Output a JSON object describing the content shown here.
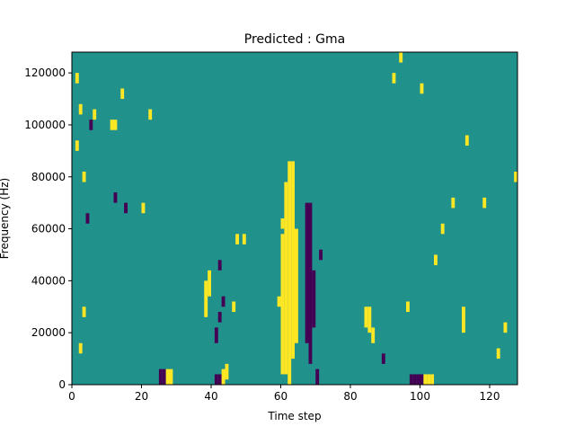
{
  "chart_data": {
    "type": "heatmap",
    "title": "Predicted : Gma",
    "xlabel": "Time step",
    "ylabel": "Frequency (Hz)",
    "xlim": [
      0,
      128
    ],
    "ylim": [
      0,
      128000
    ],
    "x_ticks": [
      0,
      20,
      40,
      60,
      80,
      100,
      120
    ],
    "y_ticks": [
      0,
      20000,
      40000,
      60000,
      80000,
      100000,
      120000
    ],
    "x_tick_labels": [
      "0",
      "20",
      "40",
      "60",
      "80",
      "100",
      "120"
    ],
    "y_tick_labels": [
      "0",
      "20000",
      "40000",
      "60000",
      "80000",
      "100000",
      "120000"
    ],
    "colormap": "viridis",
    "levels": [
      "low",
      "mid",
      "high"
    ],
    "level_colors": {
      "low": "#440154",
      "mid": "#21918c",
      "high": "#fde725"
    },
    "background_level": "mid",
    "grid": false,
    "cells": [
      {
        "t": 1,
        "f_from": 90000,
        "f_to": 94000,
        "level": "high"
      },
      {
        "t": 1,
        "f_from": 116000,
        "f_to": 120000,
        "level": "high"
      },
      {
        "t": 2,
        "f_from": 104000,
        "f_to": 108000,
        "level": "high"
      },
      {
        "t": 3,
        "f_from": 78000,
        "f_to": 82000,
        "level": "high"
      },
      {
        "t": 3,
        "f_from": 26000,
        "f_to": 30000,
        "level": "high"
      },
      {
        "t": 2,
        "f_from": 12000,
        "f_to": 16000,
        "level": "high"
      },
      {
        "t": 5,
        "f_from": 98000,
        "f_to": 102000,
        "level": "low"
      },
      {
        "t": 6,
        "f_from": 102000,
        "f_to": 106000,
        "level": "high"
      },
      {
        "t": 4,
        "f_from": 62000,
        "f_to": 66000,
        "level": "low"
      },
      {
        "t": 11,
        "f_from": 98000,
        "f_to": 102000,
        "level": "high"
      },
      {
        "t": 12,
        "f_from": 98000,
        "f_to": 102000,
        "level": "high"
      },
      {
        "t": 14,
        "f_from": 110000,
        "f_to": 114000,
        "level": "high"
      },
      {
        "t": 12,
        "f_from": 70000,
        "f_to": 74000,
        "level": "low"
      },
      {
        "t": 15,
        "f_from": 66000,
        "f_to": 70000,
        "level": "low"
      },
      {
        "t": 20,
        "f_from": 66000,
        "f_to": 70000,
        "level": "high"
      },
      {
        "t": 22,
        "f_from": 102000,
        "f_to": 106000,
        "level": "high"
      },
      {
        "t": 25,
        "f_from": 0,
        "f_to": 6000,
        "level": "low"
      },
      {
        "t": 26,
        "f_from": 0,
        "f_to": 6000,
        "level": "low"
      },
      {
        "t": 27,
        "f_from": 0,
        "f_to": 6000,
        "level": "high"
      },
      {
        "t": 28,
        "f_from": 0,
        "f_to": 6000,
        "level": "high"
      },
      {
        "t": 38,
        "f_from": 26000,
        "f_to": 40000,
        "level": "high"
      },
      {
        "t": 39,
        "f_from": 34000,
        "f_to": 44000,
        "level": "high"
      },
      {
        "t": 41,
        "f_from": 0,
        "f_to": 4000,
        "level": "low"
      },
      {
        "t": 42,
        "f_from": 0,
        "f_to": 4000,
        "level": "low"
      },
      {
        "t": 43,
        "f_from": 0,
        "f_to": 6000,
        "level": "high"
      },
      {
        "t": 44,
        "f_from": 2000,
        "f_to": 8000,
        "level": "high"
      },
      {
        "t": 42,
        "f_from": 24000,
        "f_to": 28000,
        "level": "low"
      },
      {
        "t": 41,
        "f_from": 16000,
        "f_to": 22000,
        "level": "low"
      },
      {
        "t": 43,
        "f_from": 30000,
        "f_to": 34000,
        "level": "low"
      },
      {
        "t": 46,
        "f_from": 28000,
        "f_to": 32000,
        "level": "high"
      },
      {
        "t": 47,
        "f_from": 54000,
        "f_to": 58000,
        "level": "high"
      },
      {
        "t": 49,
        "f_from": 54000,
        "f_to": 58000,
        "level": "high"
      },
      {
        "t": 42,
        "f_from": 44000,
        "f_to": 48000,
        "level": "low"
      },
      {
        "t": 60,
        "f_from": 4000,
        "f_to": 58000,
        "level": "high"
      },
      {
        "t": 61,
        "f_from": 4000,
        "f_to": 78000,
        "level": "high"
      },
      {
        "t": 62,
        "f_from": 0,
        "f_to": 86000,
        "level": "high"
      },
      {
        "t": 63,
        "f_from": 10000,
        "f_to": 86000,
        "level": "high"
      },
      {
        "t": 64,
        "f_from": 16000,
        "f_to": 60000,
        "level": "high"
      },
      {
        "t": 59,
        "f_from": 30000,
        "f_to": 34000,
        "level": "high"
      },
      {
        "t": 60,
        "f_from": 60000,
        "f_to": 64000,
        "level": "high"
      },
      {
        "t": 67,
        "f_from": 16000,
        "f_to": 70000,
        "level": "low"
      },
      {
        "t": 68,
        "f_from": 8000,
        "f_to": 70000,
        "level": "low"
      },
      {
        "t": 69,
        "f_from": 22000,
        "f_to": 44000,
        "level": "low"
      },
      {
        "t": 70,
        "f_from": 0,
        "f_to": 6000,
        "level": "low"
      },
      {
        "t": 71,
        "f_from": 48000,
        "f_to": 52000,
        "level": "low"
      },
      {
        "t": 84,
        "f_from": 22000,
        "f_to": 30000,
        "level": "high"
      },
      {
        "t": 85,
        "f_from": 20000,
        "f_to": 30000,
        "level": "high"
      },
      {
        "t": 86,
        "f_from": 16000,
        "f_to": 22000,
        "level": "high"
      },
      {
        "t": 89,
        "f_from": 8000,
        "f_to": 12000,
        "level": "low"
      },
      {
        "t": 97,
        "f_from": 0,
        "f_to": 4000,
        "level": "low"
      },
      {
        "t": 98,
        "f_from": 0,
        "f_to": 4000,
        "level": "low"
      },
      {
        "t": 99,
        "f_from": 0,
        "f_to": 4000,
        "level": "low"
      },
      {
        "t": 100,
        "f_from": 0,
        "f_to": 4000,
        "level": "low"
      },
      {
        "t": 101,
        "f_from": 0,
        "f_to": 4000,
        "level": "high"
      },
      {
        "t": 102,
        "f_from": 0,
        "f_to": 4000,
        "level": "high"
      },
      {
        "t": 103,
        "f_from": 0,
        "f_to": 4000,
        "level": "high"
      },
      {
        "t": 104,
        "f_from": 46000,
        "f_to": 50000,
        "level": "high"
      },
      {
        "t": 106,
        "f_from": 58000,
        "f_to": 62000,
        "level": "high"
      },
      {
        "t": 109,
        "f_from": 68000,
        "f_to": 72000,
        "level": "high"
      },
      {
        "t": 112,
        "f_from": 20000,
        "f_to": 30000,
        "level": "high"
      },
      {
        "t": 118,
        "f_from": 68000,
        "f_to": 72000,
        "level": "high"
      },
      {
        "t": 122,
        "f_from": 10000,
        "f_to": 14000,
        "level": "high"
      },
      {
        "t": 127,
        "f_from": 78000,
        "f_to": 82000,
        "level": "high"
      },
      {
        "t": 124,
        "f_from": 20000,
        "f_to": 24000,
        "level": "high"
      },
      {
        "t": 96,
        "f_from": 28000,
        "f_to": 32000,
        "level": "high"
      },
      {
        "t": 94,
        "f_from": 124000,
        "f_to": 128000,
        "level": "high"
      },
      {
        "t": 92,
        "f_from": 116000,
        "f_to": 120000,
        "level": "high"
      },
      {
        "t": 100,
        "f_from": 112000,
        "f_to": 116000,
        "level": "high"
      },
      {
        "t": 113,
        "f_from": 92000,
        "f_to": 96000,
        "level": "high"
      }
    ]
  }
}
